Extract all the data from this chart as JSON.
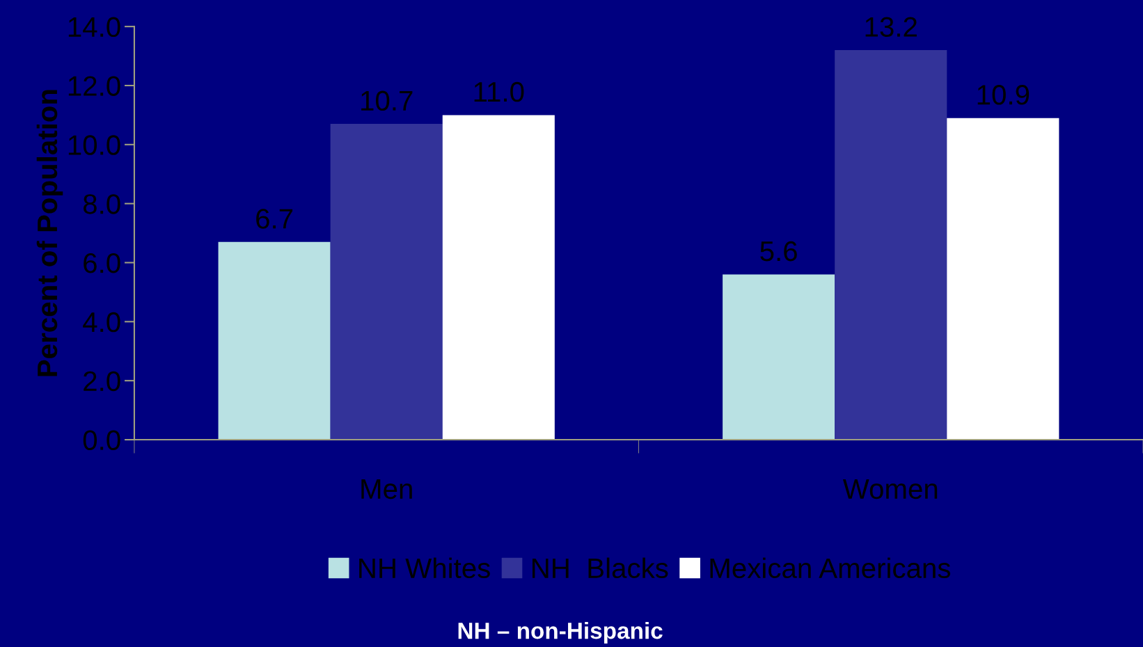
{
  "chart_data": {
    "type": "bar",
    "ylabel": "Percent of Population",
    "categories": [
      "Men",
      "Women"
    ],
    "series": [
      {
        "name": "NH Whites",
        "color": "#b9e1e3",
        "values": [
          6.7,
          5.6
        ],
        "value_labels": [
          "6.7",
          "5.6"
        ]
      },
      {
        "name": "NH  Blacks",
        "color": "#333399",
        "values": [
          10.7,
          13.2
        ],
        "value_labels": [
          "10.7",
          "13.2"
        ]
      },
      {
        "name": "Mexican Americans",
        "color": "#ffffff",
        "values": [
          11.0,
          10.9
        ],
        "value_labels": [
          "11.0",
          "10.9"
        ]
      }
    ],
    "ylim": [
      0,
      14
    ],
    "yticks": [
      {
        "value": 0,
        "label": "0.0"
      },
      {
        "value": 2,
        "label": "2.0"
      },
      {
        "value": 4,
        "label": "4.0"
      },
      {
        "value": 6,
        "label": "6.0"
      },
      {
        "value": 8,
        "label": "8.0"
      },
      {
        "value": 10,
        "label": "10.0"
      },
      {
        "value": 12,
        "label": "12.0"
      },
      {
        "value": 14,
        "label": "14.0"
      }
    ],
    "grid": false,
    "legend": "bottom",
    "annotations": [
      "NH – non-Hispanic"
    ]
  }
}
